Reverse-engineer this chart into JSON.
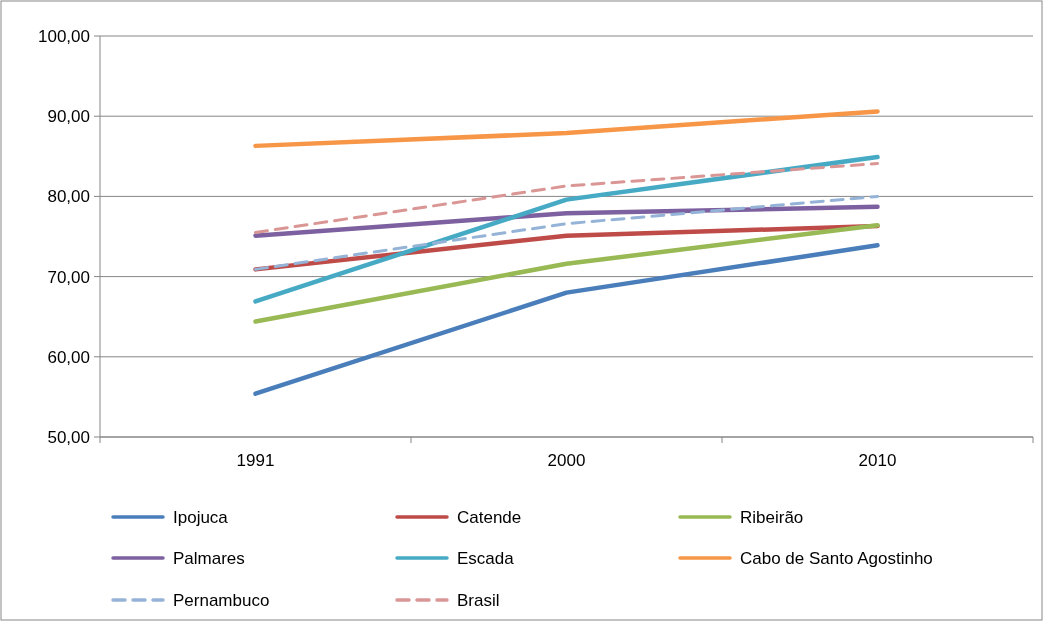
{
  "chart_data": {
    "type": "line",
    "categories": [
      "1991",
      "2000",
      "2010"
    ],
    "ylim": [
      50,
      100
    ],
    "yticks": [
      {
        "value": 50,
        "label": "50,00"
      },
      {
        "value": 60,
        "label": "60,00"
      },
      {
        "value": 70,
        "label": "70,00"
      },
      {
        "value": 80,
        "label": "80,00"
      },
      {
        "value": 90,
        "label": "90,00"
      },
      {
        "value": 100,
        "label": "100,00"
      }
    ],
    "grid": "y",
    "legend": "bottom",
    "marker": "none",
    "series": [
      {
        "name": "Ipojuca",
        "color": "#4a7ebb",
        "values": [
          55.4,
          68.0,
          73.9
        ]
      },
      {
        "name": "Catende",
        "color": "#be4b48",
        "values": [
          70.9,
          75.1,
          76.3
        ]
      },
      {
        "name": "Ribeirão",
        "color": "#98b954",
        "values": [
          64.4,
          71.6,
          76.4
        ]
      },
      {
        "name": "Palmares",
        "color": "#7d60a0",
        "values": [
          75.1,
          77.9,
          78.7
        ]
      },
      {
        "name": "Escada",
        "color": "#46aac5",
        "values": [
          66.9,
          79.6,
          84.9
        ]
      },
      {
        "name": "Cabo de Santo Agostinho",
        "color": "#f79646",
        "values": [
          86.3,
          87.9,
          90.6
        ]
      },
      {
        "name": "Pernambuco",
        "color": "#95b3d7",
        "line_style": "dashed",
        "values": [
          70.9,
          76.6,
          80.0
        ]
      },
      {
        "name": "Brasil",
        "color": "#d99694",
        "line_style": "dashed",
        "values": [
          75.5,
          81.3,
          84.1
        ]
      }
    ]
  }
}
